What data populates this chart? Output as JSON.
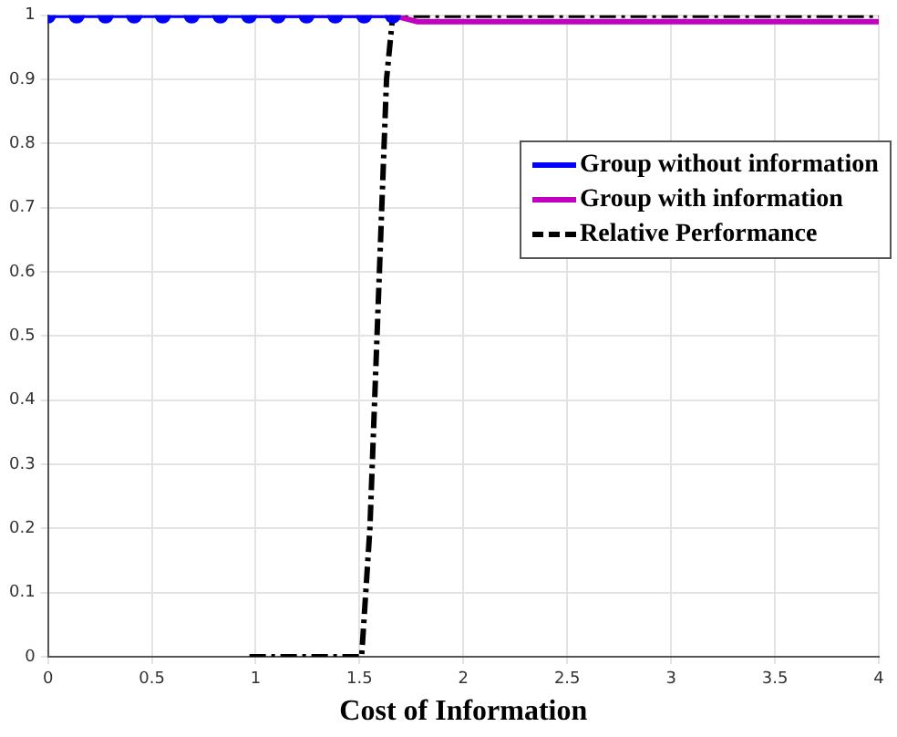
{
  "chart_data": {
    "type": "line",
    "xlabel": "Cost of Information",
    "xlim": [
      0,
      4
    ],
    "xticks": [
      0,
      0.5,
      1,
      1.5,
      2,
      2.5,
      3,
      3.5,
      4
    ],
    "ylim": [
      0,
      1
    ],
    "yticks": [
      0,
      0.1,
      0.2,
      0.3,
      0.4,
      0.5,
      0.6,
      0.7,
      0.8,
      0.9,
      1
    ],
    "grid": true,
    "legend": "right",
    "series": [
      {
        "name": "Group without information",
        "color": "#0000ff",
        "marker": "circle",
        "line_style": "solid",
        "x": [
          0,
          0.138,
          0.277,
          0.415,
          0.553,
          0.692,
          0.83,
          0.968,
          1.107,
          1.245,
          1.383,
          1.522,
          1.66
        ],
        "values": [
          1,
          1,
          1,
          1,
          1,
          1,
          1,
          1,
          1,
          1,
          1,
          1,
          1
        ]
      },
      {
        "name": "Group with information",
        "color": "#c000c0",
        "marker": "none",
        "line_style": "solid",
        "x": [
          0.97,
          1.66,
          1.78,
          4
        ],
        "values": [
          1,
          1,
          0.99,
          0.99
        ]
      },
      {
        "name": "Relative Performance",
        "color": "#000000",
        "marker": "none",
        "line_style": "dashed",
        "x": [
          0.97,
          1.51,
          1.55,
          1.63,
          1.66,
          4
        ],
        "values": [
          0,
          0,
          0.2,
          0.9,
          1,
          1
        ]
      }
    ]
  }
}
